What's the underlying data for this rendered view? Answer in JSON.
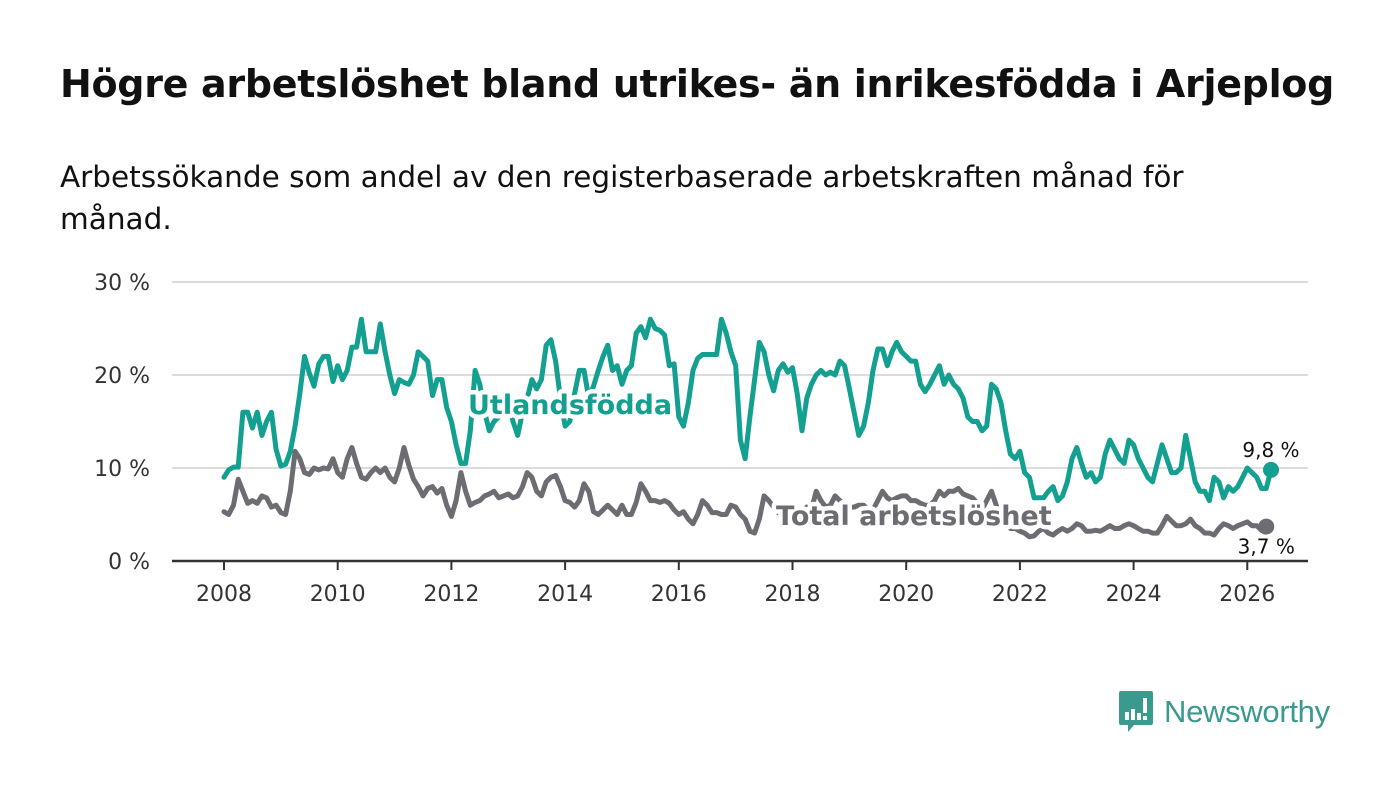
{
  "header": {
    "title": "Högre arbetslöshet bland utrikes- än inrikesfödda i Arjeplog",
    "subtitle": "Arbetssökande som andel av den registerbaserade arbetskraften månad för månad."
  },
  "brand": {
    "name": "Newsworthy",
    "icon": "bar-chart-speech-bubble-icon",
    "color": "#3a9a8e"
  },
  "chart_data": {
    "type": "line",
    "title": "Högre arbetslöshet bland utrikes- än inrikesfödda i Arjeplog",
    "subtitle": "Arbetssökande som andel av den registerbaserade arbetskraften månad för månad.",
    "xlabel": "",
    "ylabel": "",
    "x_start": "2008-01",
    "x_end": "2026-02",
    "frequency": "monthly",
    "xlim": [
      2007.75,
      2027.1
    ],
    "ylim": [
      0,
      30
    ],
    "grid": true,
    "legend": "inline-labels",
    "x_ticks": [
      "2008",
      "2010",
      "2012",
      "2014",
      "2016",
      "2018",
      "2020",
      "2022",
      "2024",
      "2026"
    ],
    "y_ticks": [
      {
        "value": 0,
        "label": "0 %"
      },
      {
        "value": 10,
        "label": "10 %"
      },
      {
        "value": 20,
        "label": "20 %"
      },
      {
        "value": 30,
        "label": "30 %"
      }
    ],
    "series": [
      {
        "name": "Utlandsfödda",
        "color": "#13a090",
        "last_label": "9,8 %",
        "values": [
          9.0,
          9.8,
          10.1,
          10.1,
          16.0,
          16.0,
          14.3,
          16.0,
          13.5,
          15.0,
          16.0,
          12.0,
          10.2,
          10.4,
          11.8,
          14.5,
          18.0,
          22.0,
          20.2,
          18.8,
          21.2,
          22.0,
          22.0,
          19.3,
          21.0,
          19.5,
          20.5,
          23.0,
          23.0,
          26.0,
          22.5,
          22.5,
          22.5,
          25.5,
          22.5,
          20.0,
          18.0,
          19.5,
          19.2,
          19.0,
          20.0,
          22.5,
          22.0,
          21.5,
          17.8,
          19.5,
          19.5,
          16.5,
          15.0,
          12.5,
          10.5,
          10.5,
          14.0,
          20.5,
          19.0,
          16.0,
          14.0,
          15.0,
          15.5,
          16.0,
          17.0,
          15.0,
          13.5,
          16.0,
          17.5,
          19.5,
          18.5,
          19.5,
          23.2,
          23.8,
          21.5,
          17.5,
          14.5,
          15.0,
          18.0,
          20.5,
          20.5,
          17.5,
          18.8,
          20.5,
          22.0,
          23.2,
          20.5,
          21.0,
          19.0,
          20.5,
          21.0,
          24.5,
          25.2,
          24.0,
          26.0,
          25.0,
          24.8,
          24.3,
          21.0,
          21.2,
          15.5,
          14.5,
          17.0,
          20.5,
          21.8,
          22.2,
          22.2,
          22.2,
          22.2,
          26.0,
          24.5,
          22.5,
          21.0,
          13.0,
          11.0,
          15.5,
          19.5,
          23.5,
          22.5,
          20.0,
          18.3,
          20.5,
          21.2,
          20.3,
          20.8,
          18.0,
          14.0,
          17.5,
          19.0,
          20.0,
          20.5,
          20.0,
          20.3,
          20.0,
          21.5,
          21.0,
          18.5,
          16.0,
          13.5,
          14.5,
          17.0,
          20.5,
          22.8,
          22.8,
          21.0,
          22.5,
          23.5,
          22.5,
          22.0,
          21.5,
          21.5,
          19.0,
          18.2,
          19.0,
          20.0,
          21.0,
          19.0,
          20.0,
          19.0,
          18.5,
          17.5,
          15.5,
          15.0,
          15.0,
          14.0,
          14.5,
          19.0,
          18.5,
          17.0,
          14.0,
          11.5,
          11.0,
          11.8,
          9.5,
          9.0,
          6.8,
          6.8,
          6.8,
          7.5,
          8.0,
          6.5,
          7.0,
          8.5,
          11.0,
          12.2,
          10.5,
          9.0,
          9.5,
          8.5,
          9.0,
          11.5,
          13.0,
          12.0,
          11.0,
          10.5,
          13.0,
          12.5,
          11.0,
          10.0,
          9.0,
          8.5,
          10.5,
          12.5,
          11.0,
          9.5,
          9.5,
          10.0,
          13.5,
          11.0,
          8.5,
          7.5,
          7.5,
          6.5,
          9.0,
          8.5,
          6.8,
          8.0,
          7.5,
          8.0,
          9.0,
          10.0,
          9.5,
          9.0,
          7.8,
          7.8,
          9.8
        ]
      },
      {
        "name": "Total arbetslöshet",
        "color": "#6d6c72",
        "last_label": "3,7 %",
        "values": [
          5.3,
          5.0,
          6.0,
          8.8,
          7.5,
          6.2,
          6.5,
          6.2,
          7.0,
          6.8,
          5.8,
          6.0,
          5.2,
          5.0,
          7.5,
          11.8,
          11.0,
          9.5,
          9.3,
          10.0,
          9.8,
          10.0,
          9.9,
          11.0,
          9.5,
          9.0,
          11.0,
          12.2,
          10.5,
          9.0,
          8.8,
          9.5,
          10.0,
          9.5,
          10.0,
          9.0,
          8.5,
          10.0,
          12.2,
          10.3,
          8.8,
          8.0,
          7.0,
          7.8,
          8.0,
          7.3,
          7.8,
          6.0,
          4.8,
          6.5,
          9.5,
          7.5,
          6.0,
          6.3,
          6.5,
          7.0,
          7.2,
          7.5,
          6.8,
          7.0,
          7.2,
          6.8,
          7.0,
          8.0,
          9.5,
          9.0,
          7.5,
          7.0,
          8.5,
          9.0,
          9.2,
          8.0,
          6.5,
          6.3,
          5.8,
          6.5,
          8.3,
          7.5,
          5.3,
          5.0,
          5.5,
          6.0,
          5.5,
          5.0,
          6.0,
          5.0,
          5.0,
          6.3,
          8.3,
          7.5,
          6.5,
          6.5,
          6.3,
          6.5,
          6.2,
          5.5,
          5.0,
          5.3,
          4.5,
          4.0,
          5.0,
          6.5,
          6.0,
          5.2,
          5.2,
          5.0,
          5.0,
          6.0,
          5.8,
          5.0,
          4.5,
          3.2,
          3.0,
          4.5,
          7.0,
          6.5,
          5.8,
          5.2,
          5.5,
          5.2,
          4.8,
          5.0,
          5.3,
          5.8,
          5.5,
          7.5,
          6.5,
          5.8,
          6.0,
          7.0,
          6.5,
          6.0,
          5.8,
          5.8,
          6.0,
          6.0,
          5.5,
          5.5,
          6.5,
          7.5,
          6.8,
          6.5,
          6.8,
          7.0,
          7.0,
          6.5,
          6.5,
          6.2,
          6.0,
          6.0,
          6.5,
          7.5,
          7.0,
          7.5,
          7.5,
          7.8,
          7.2,
          7.0,
          6.8,
          6.2,
          5.5,
          6.5,
          7.5,
          6.0,
          4.5,
          4.0,
          3.5,
          3.5,
          3.2,
          3.0,
          2.6,
          2.7,
          3.2,
          3.5,
          3.0,
          2.8,
          3.2,
          3.5,
          3.2,
          3.5,
          4.0,
          3.8,
          3.2,
          3.2,
          3.3,
          3.2,
          3.5,
          3.8,
          3.5,
          3.5,
          3.8,
          4.0,
          3.8,
          3.5,
          3.2,
          3.2,
          3.0,
          3.0,
          3.8,
          4.8,
          4.3,
          3.8,
          3.8,
          4.0,
          4.5,
          3.8,
          3.5,
          3.0,
          3.0,
          2.8,
          3.5,
          4.0,
          3.8,
          3.5,
          3.8,
          4.0,
          4.2,
          3.8,
          3.8,
          3.3,
          3.7
        ]
      }
    ],
    "annotations": [
      {
        "text": "Utlandsfödda",
        "series": "Utlandsfödda",
        "position": "inline near 2013"
      },
      {
        "text": "Total arbetslöshet",
        "series": "Total arbetslöshet",
        "position": "inline near 2019"
      },
      {
        "text": "9,8 %",
        "series": "Utlandsfödda",
        "position": "end point"
      },
      {
        "text": "3,7 %",
        "series": "Total arbetslöshet",
        "position": "end point"
      }
    ]
  }
}
